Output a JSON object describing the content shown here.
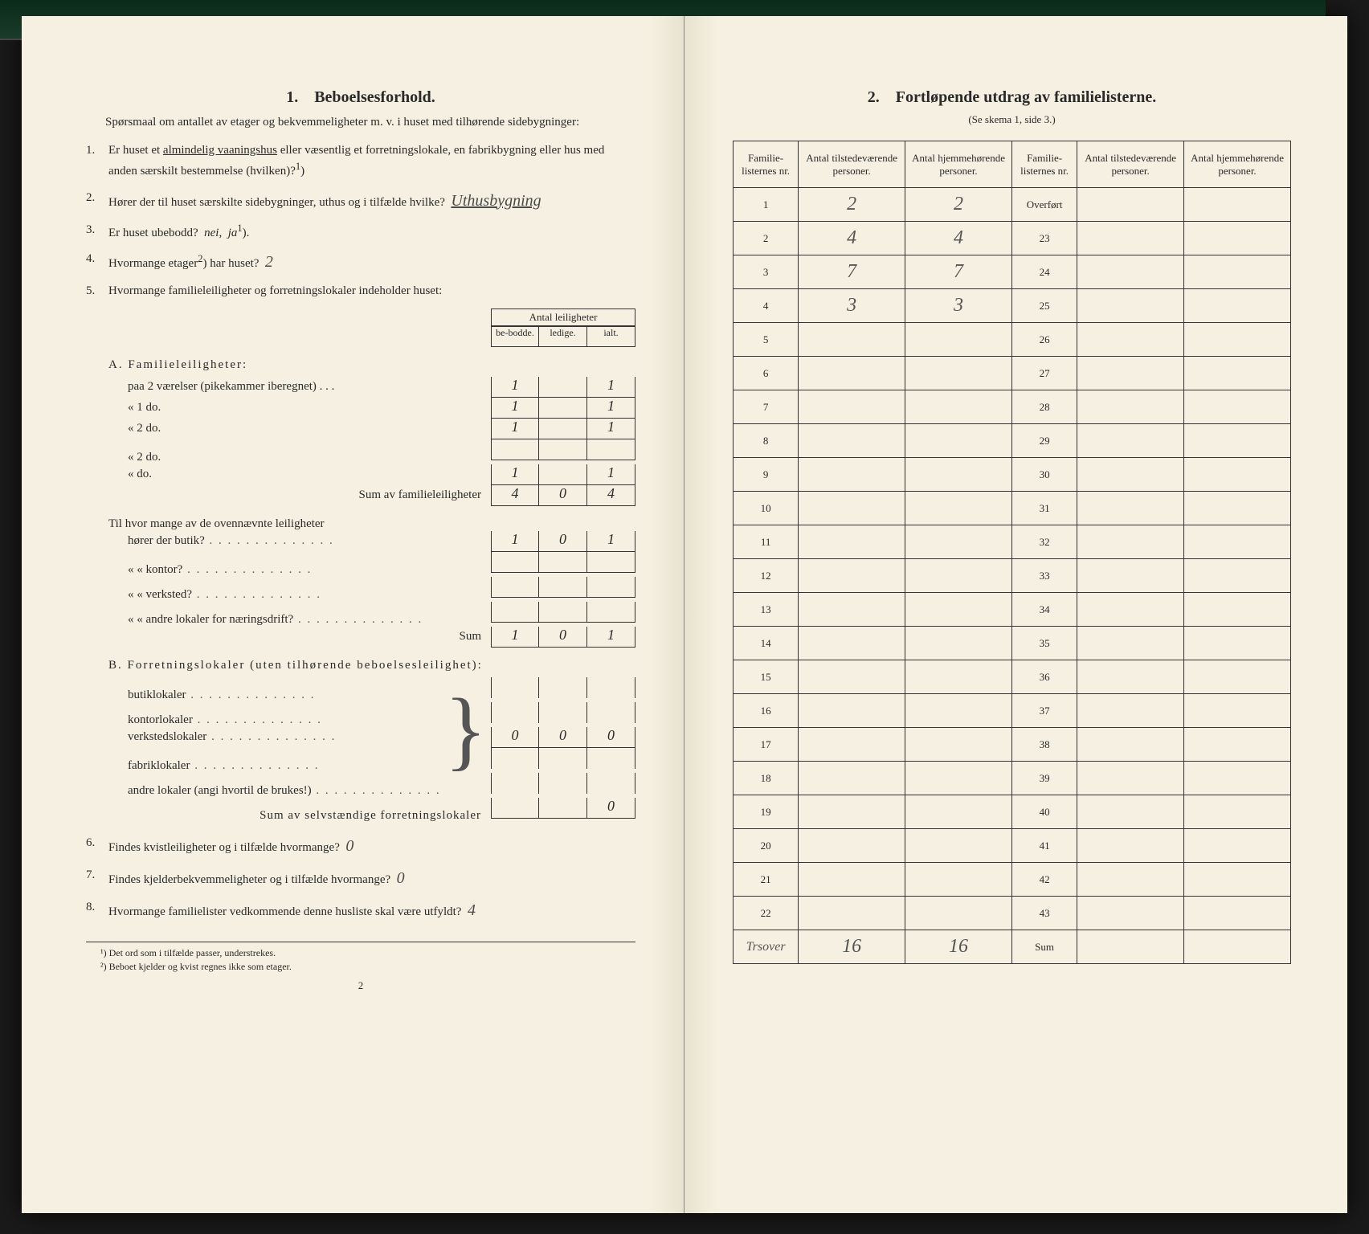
{
  "left": {
    "title_num": "1.",
    "title": "Beboelsesforhold.",
    "intro": "Spørsmaal om antallet av etager og bekvemmeligheter m. v. i huset med tilhørende sidebygninger:",
    "q1_pre": "Er huset et ",
    "q1_underlined": "almindelig vaaningshus",
    "q1_post": " eller væsentlig et forretningslokale, en fabrikbygning eller hus med anden særskilt bestemmelse (hvilken)?",
    "q1_sup": "1",
    "q2_pre": "Hører der til huset særskilte sidebygninger, uthus og i tilfælde hvilke?",
    "q2_hand": "Uthusbygning",
    "q3": "Er huset ubebodd?  nei,  ja",
    "q3_sup": "1",
    "q4": "Hvormange etager",
    "q4_sup": "2",
    "q4_post": ") har huset?",
    "q4_hand": "2",
    "q5": "Hvormange familieleiligheter og forretningslokaler indeholder huset:",
    "mini_head": "Antal leiligheter",
    "mini_h1": "be-bodde.",
    "mini_h2": "ledige.",
    "mini_h3": "ialt.",
    "A_title": "A. Familieleiligheter:",
    "A_rows": [
      {
        "lbl": "paa 2 værelser (pikekammer iberegnet) . . .",
        "v": [
          "1",
          "",
          "1"
        ]
      },
      {
        "lbl": "«  1   do.",
        "v": [
          "1",
          "",
          "1"
        ]
      },
      {
        "lbl": "«  2   do.",
        "v": [
          "1",
          "",
          "1"
        ]
      },
      {
        "lbl": "«  2   do.",
        "v": [
          "",
          "",
          ""
        ]
      },
      {
        "lbl": "«       do.",
        "v": [
          "1",
          "",
          "1"
        ]
      }
    ],
    "A_sum_lbl": "Sum av familieleiligheter",
    "A_sum": [
      "4",
      "0",
      "4"
    ],
    "mid_q": "Til hvor mange av de ovennævnte leiligheter",
    "mid_rows": [
      {
        "lbl": "hører der butik?",
        "v": [
          "1",
          "0",
          "1"
        ]
      },
      {
        "lbl": "«     «  kontor?",
        "v": [
          "",
          "",
          ""
        ]
      },
      {
        "lbl": "«     «  verksted?",
        "v": [
          "",
          "",
          ""
        ]
      },
      {
        "lbl": "«     «  andre lokaler for næringsdrift?",
        "v": [
          "",
          "",
          ""
        ]
      }
    ],
    "mid_sum_lbl": "Sum",
    "mid_sum": [
      "1",
      "0",
      "1"
    ],
    "B_title": "B. Forretningslokaler (uten tilhørende beboelsesleilighet):",
    "B_rows": [
      {
        "lbl": "butiklokaler"
      },
      {
        "lbl": "kontorlokaler"
      },
      {
        "lbl": "verkstedslokaler"
      },
      {
        "lbl": "fabriklokaler"
      },
      {
        "lbl": "andre lokaler (angi hvortil de brukes!)"
      }
    ],
    "B_brace_vals": [
      "0",
      "0",
      "0"
    ],
    "B_sum_lbl": "Sum av selvstændige forretningslokaler",
    "B_sum": [
      "",
      "",
      "0"
    ],
    "q6": "Findes kvistleiligheter og i tilfælde hvormange?",
    "q6_hand": "0",
    "q7": "Findes kjelderbekvemmeligheter og i tilfælde hvormange?",
    "q7_hand": "0",
    "q8": "Hvormange familielister vedkommende denne husliste skal være utfyldt?",
    "q8_hand": "4",
    "fn1": "¹) Det ord som i tilfælde passer, understrekes.",
    "fn2": "²) Beboet kjelder og kvist regnes ikke som etager.",
    "pagenum": "2"
  },
  "right": {
    "title_num": "2.",
    "title": "Fortløpende utdrag av familielisterne.",
    "sub": "(Se skema 1, side 3.)",
    "headers": [
      "Familie-listernes nr.",
      "Antal tilstedeværende personer.",
      "Antal hjemmehørende personer.",
      "Familie-listernes nr.",
      "Antal tilstedeværende personer.",
      "Antal hjemmehørende personer."
    ],
    "rows": [
      {
        "l": "1",
        "a": "2",
        "b": "2",
        "r": "Overført"
      },
      {
        "l": "2",
        "a": "4",
        "b": "4",
        "r": "23"
      },
      {
        "l": "3",
        "a": "7",
        "b": "7",
        "r": "24"
      },
      {
        "l": "4",
        "a": "3",
        "b": "3",
        "r": "25"
      },
      {
        "l": "5",
        "a": "",
        "b": "",
        "r": "26"
      },
      {
        "l": "6",
        "a": "",
        "b": "",
        "r": "27"
      },
      {
        "l": "7",
        "a": "",
        "b": "",
        "r": "28"
      },
      {
        "l": "8",
        "a": "",
        "b": "",
        "r": "29"
      },
      {
        "l": "9",
        "a": "",
        "b": "",
        "r": "30"
      },
      {
        "l": "10",
        "a": "",
        "b": "",
        "r": "31"
      },
      {
        "l": "11",
        "a": "",
        "b": "",
        "r": "32"
      },
      {
        "l": "12",
        "a": "",
        "b": "",
        "r": "33"
      },
      {
        "l": "13",
        "a": "",
        "b": "",
        "r": "34"
      },
      {
        "l": "14",
        "a": "",
        "b": "",
        "r": "35"
      },
      {
        "l": "15",
        "a": "",
        "b": "",
        "r": "36"
      },
      {
        "l": "16",
        "a": "",
        "b": "",
        "r": "37"
      },
      {
        "l": "17",
        "a": "",
        "b": "",
        "r": "38"
      },
      {
        "l": "18",
        "a": "",
        "b": "",
        "r": "39"
      },
      {
        "l": "19",
        "a": "",
        "b": "",
        "r": "40"
      },
      {
        "l": "20",
        "a": "",
        "b": "",
        "r": "41"
      },
      {
        "l": "21",
        "a": "",
        "b": "",
        "r": "42"
      },
      {
        "l": "22",
        "a": "",
        "b": "",
        "r": "43"
      }
    ],
    "sum_row": {
      "l_lbl": "Trsover",
      "a": "16",
      "b": "16",
      "r_lbl": "Sum"
    }
  },
  "colors": {
    "paper": "#f5f0e1",
    "ink": "#2a2a2a",
    "hand": "#4a4a4a",
    "border": "#333333",
    "bg": "#1a1a1a",
    "topband": "#1a3a2a"
  }
}
